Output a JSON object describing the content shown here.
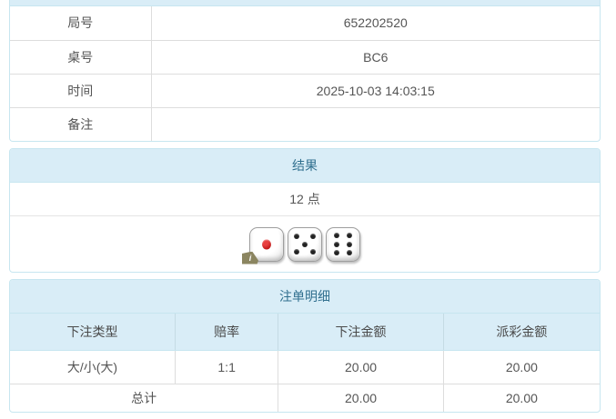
{
  "colors": {
    "header_bg": "#d9edf7",
    "header_text": "#31708f",
    "panel_border": "#c7e6f0",
    "odds_red": "#e4393c",
    "pip_red": "#a80000",
    "info_badge_bg": "#8b8560"
  },
  "game_info": {
    "rows": [
      {
        "label": "局号",
        "value": "652202520"
      },
      {
        "label": "桌号",
        "value": "BC6"
      },
      {
        "label": "时间",
        "value": "2025-10-03 14:03:15"
      },
      {
        "label": "备注",
        "value": ""
      }
    ]
  },
  "result_panel": {
    "title": "结果",
    "points": "12 点",
    "dice": [
      1,
      5,
      6
    ],
    "info_badge": "i"
  },
  "bet_panel": {
    "title": "注单明细",
    "columns": [
      "下注类型",
      "赔率",
      "下注金额",
      "派彩金额"
    ],
    "rows": [
      {
        "bet_type": "大/小(大)",
        "odds": "1:1",
        "bet_amount": "20.00",
        "payout_amount": "20.00"
      }
    ],
    "total": {
      "label": "总计",
      "bet_amount": "20.00",
      "payout_amount": "20.00"
    }
  }
}
